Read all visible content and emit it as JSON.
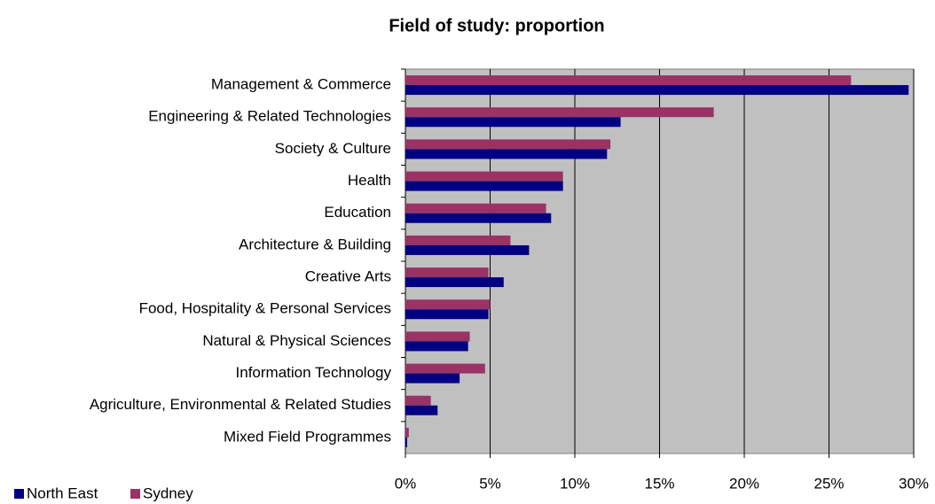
{
  "chart_data": {
    "type": "hbar",
    "title": "Field of study: proportion",
    "categories": [
      "Management & Commerce",
      "Engineering & Related Technologies",
      "Society & Culture",
      "Health",
      "Education",
      "Architecture & Building",
      "Creative Arts",
      "Food, Hospitality & Personal Services",
      "Natural & Physical Sciences",
      "Information Technology",
      "Agriculture, Environmental & Related Studies",
      "Mixed Field Programmes"
    ],
    "series": [
      {
        "name": "North East",
        "color": "#000080",
        "values": [
          29.7,
          12.7,
          11.9,
          9.3,
          8.6,
          7.3,
          5.8,
          4.9,
          3.7,
          3.2,
          1.9,
          0.1
        ]
      },
      {
        "name": "Sydney",
        "color": "#993366",
        "values": [
          26.3,
          18.2,
          12.1,
          9.3,
          8.3,
          6.2,
          4.9,
          5.0,
          3.8,
          4.7,
          1.5,
          0.2
        ]
      }
    ],
    "xlim": [
      0,
      30
    ],
    "xticks": [
      {
        "value": 0,
        "label": "0%"
      },
      {
        "value": 5,
        "label": "5%"
      },
      {
        "value": 10,
        "label": "10%"
      },
      {
        "value": 15,
        "label": "15%"
      },
      {
        "value": 20,
        "label": "20%"
      },
      {
        "value": 25,
        "label": "25%"
      },
      {
        "value": 30,
        "label": "30%"
      }
    ],
    "grid": true,
    "legend": "bottom-left",
    "background": "#c0c0c0"
  }
}
